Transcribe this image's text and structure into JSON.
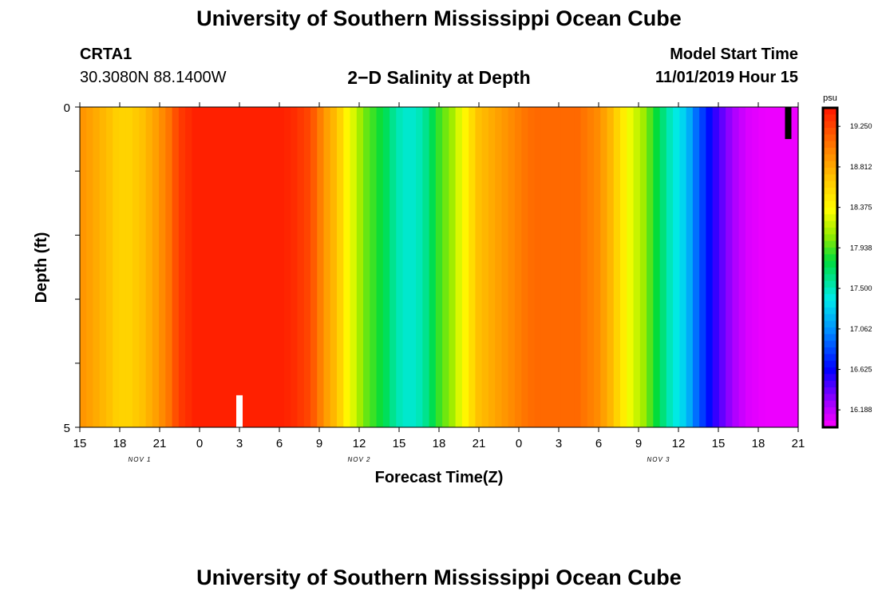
{
  "page": {
    "title_top": "University of Southern Mississippi Ocean Cube",
    "title_bottom": "University of Southern Mississippi Ocean Cube"
  },
  "station": {
    "name": "CRTA1",
    "coords": "30.3080N 88.1400W"
  },
  "model": {
    "start_label": "Model Start Time",
    "start_value": "11/01/2019 Hour 15"
  },
  "chart_data": {
    "type": "heatmap",
    "title": "2−D Salinity at Depth",
    "xlabel": "Forecast Time(Z)",
    "ylabel": "Depth (ft)",
    "units": "psu",
    "x_tick_labels": [
      "15",
      "18",
      "21",
      "0",
      "3",
      "6",
      "9",
      "12",
      "15",
      "18",
      "21",
      "0",
      "3",
      "6",
      "9",
      "12",
      "15",
      "18",
      "21"
    ],
    "day_labels": [
      {
        "label": "NOV 1",
        "forecast_hour": 4.5
      },
      {
        "label": "NOV 2",
        "forecast_hour": 21
      },
      {
        "label": "NOV 3",
        "forecast_hour": 43.5
      }
    ],
    "x_range_hours": [
      0,
      54
    ],
    "y_range_ft": [
      0,
      5
    ],
    "y_tick_labels": [
      "0",
      "5"
    ],
    "colorbar_range": [
      16.0,
      19.45
    ],
    "colorbar_ticks": [
      "19.250",
      "18.812",
      "18.375",
      "17.938",
      "17.500",
      "17.062",
      "16.625",
      "16.188"
    ],
    "salinity_hourly": [
      18.9,
      18.85,
      18.8,
      18.75,
      18.7,
      18.62,
      18.6,
      18.6,
      18.65,
      18.7,
      18.78,
      18.85,
      18.95,
      19.05,
      19.2,
      19.3,
      19.35,
      19.4,
      19.4,
      19.4,
      19.4,
      19.4,
      19.4,
      19.4,
      19.4,
      19.4,
      19.4,
      19.4,
      19.4,
      19.4,
      19.4,
      19.38,
      19.35,
      19.3,
      19.25,
      19.15,
      19.0,
      18.85,
      18.75,
      18.6,
      18.4,
      18.25,
      18.1,
      17.98,
      17.9,
      17.82,
      17.72,
      17.6,
      17.5,
      17.45,
      17.45,
      17.5,
      17.6,
      17.75,
      17.9,
      18.0,
      18.1,
      18.25,
      18.4,
      18.55,
      18.7,
      18.75,
      18.8,
      18.85,
      18.9,
      18.95,
      19.0,
      19.05,
      19.08,
      19.1,
      19.1,
      19.1,
      19.1,
      19.1,
      19.1,
      19.1,
      19.05,
      19.0,
      18.95,
      18.85,
      18.75,
      18.6,
      18.45,
      18.3,
      18.2,
      18.1,
      17.95,
      17.8,
      17.65,
      17.5,
      17.4,
      17.3,
      17.15,
      16.95,
      16.8,
      16.65,
      16.5,
      16.4,
      16.3,
      16.22,
      16.15,
      16.1,
      16.08,
      16.06,
      16.05,
      16.05,
      16.05,
      16.05,
      16.05
    ],
    "markers": [
      {
        "color": "#ffffff",
        "forecast_hour": 12,
        "depth_ft": [
          4.5,
          5
        ]
      },
      {
        "color": "#000000",
        "forecast_hour": 53.25,
        "depth_ft": [
          0,
          0.5
        ]
      }
    ]
  }
}
